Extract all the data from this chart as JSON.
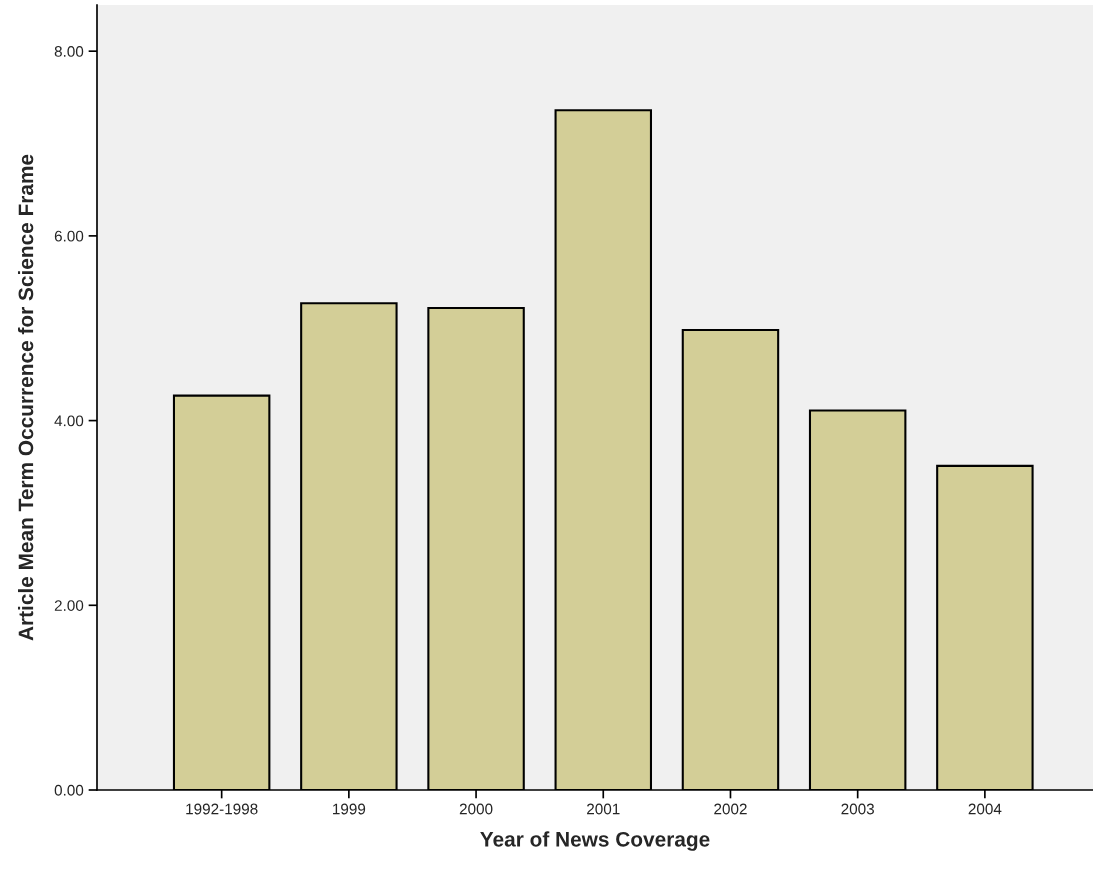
{
  "chart_data": {
    "type": "bar",
    "xlabel": "Year of News Coverage",
    "ylabel": "Article Mean Term Occurrence for Science Frame",
    "categories": [
      "1992-1998",
      "1999",
      "2000",
      "2001",
      "2002",
      "2003",
      "2004"
    ],
    "values": [
      4.27,
      5.27,
      5.22,
      7.36,
      4.98,
      4.11,
      3.51
    ],
    "color": "#d3ce97",
    "ylim": [
      0,
      8.5
    ],
    "yticks": [
      {
        "value": 0,
        "label": "0.00"
      },
      {
        "value": 2,
        "label": "2.00"
      },
      {
        "value": 4,
        "label": "4.00"
      },
      {
        "value": 6,
        "label": "6.00"
      },
      {
        "value": 8,
        "label": "8.00"
      }
    ],
    "grid": false,
    "legend": false
  }
}
